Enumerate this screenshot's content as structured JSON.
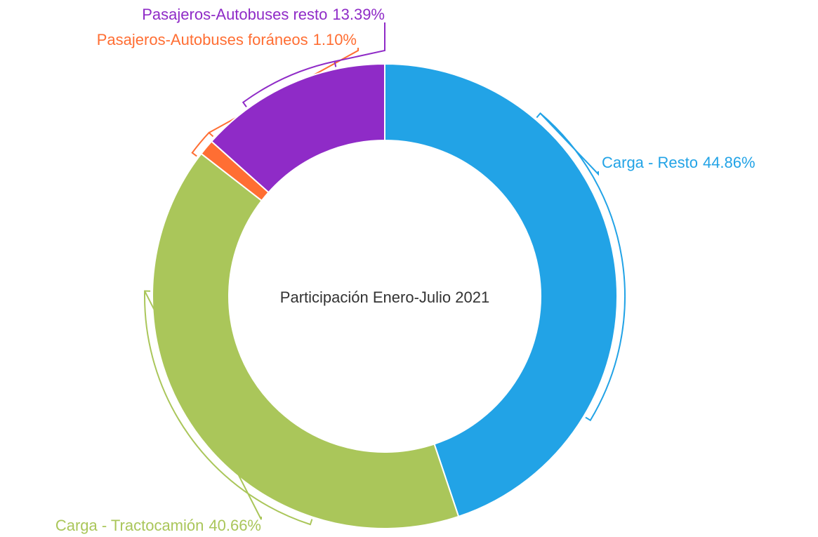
{
  "chart_data": {
    "type": "donut",
    "center_text": "Participación Enero-Julio 2021",
    "categories": [
      "Carga - Resto",
      "Carga - Tractocamión",
      "Pasajeros-Autobuses foráneos",
      "Pasajeros-Autobuses resto"
    ],
    "values": [
      44.86,
      40.66,
      1.1,
      13.39
    ],
    "value_labels": [
      "44.86%",
      "40.66%",
      "1.10%",
      "13.39%"
    ],
    "colors": [
      "#22a3e6",
      "#aac65a",
      "#ff6e33",
      "#8f2bc7"
    ]
  }
}
